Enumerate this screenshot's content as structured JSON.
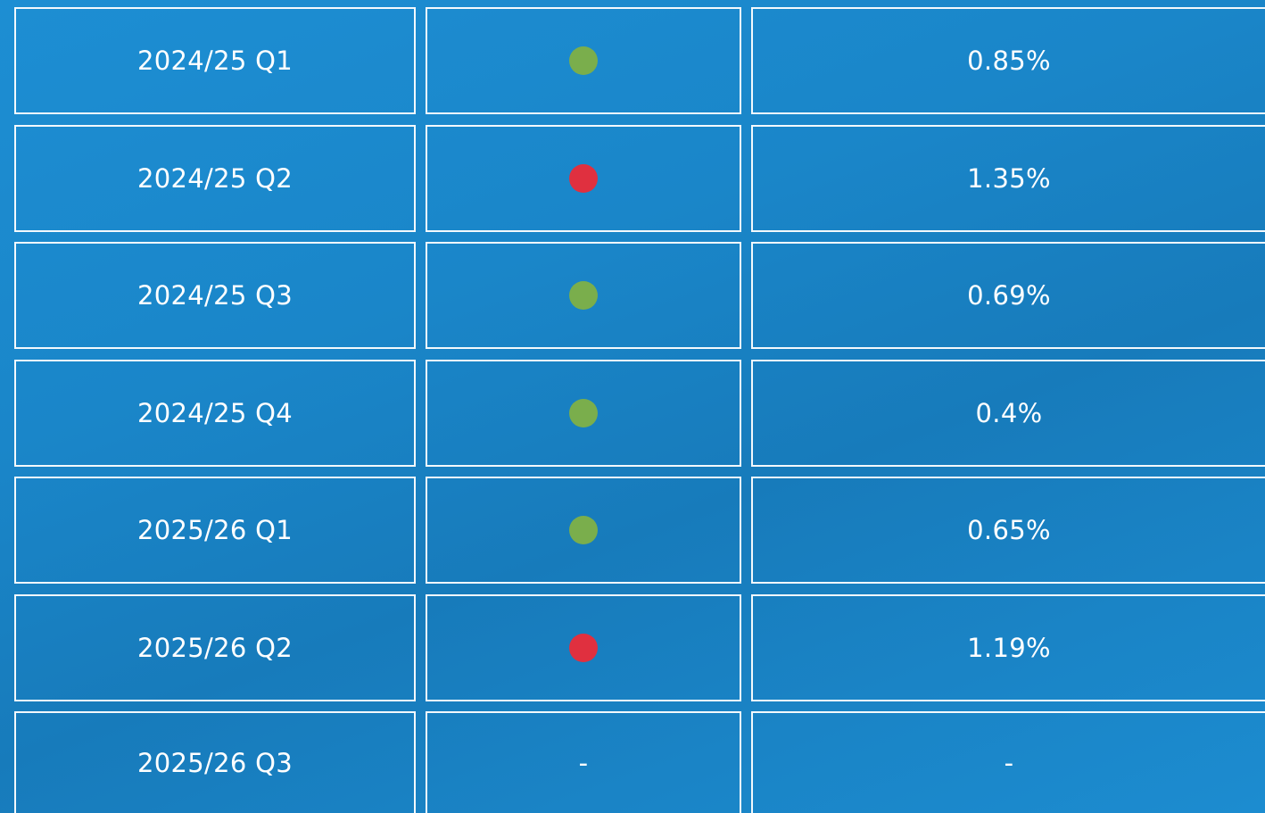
{
  "table": {
    "rows": [
      {
        "period": "2024/25 Q1",
        "status_color": "#7aae4c",
        "value": "0.85%"
      },
      {
        "period": "2024/25 Q2",
        "status_color": "#e0303f",
        "value": "1.35%"
      },
      {
        "period": "2024/25 Q3",
        "status_color": "#7aae4c",
        "value": "0.69%"
      },
      {
        "period": "2024/25 Q4",
        "status_color": "#7aae4c",
        "value": "0.4%"
      },
      {
        "period": "2025/26 Q1",
        "status_color": "#7aae4c",
        "value": "0.65%"
      },
      {
        "period": "2025/26 Q2",
        "status_color": "#e0303f",
        "value": "1.19%"
      },
      {
        "period": "2025/26 Q3",
        "status": "-",
        "value": "-"
      }
    ]
  }
}
